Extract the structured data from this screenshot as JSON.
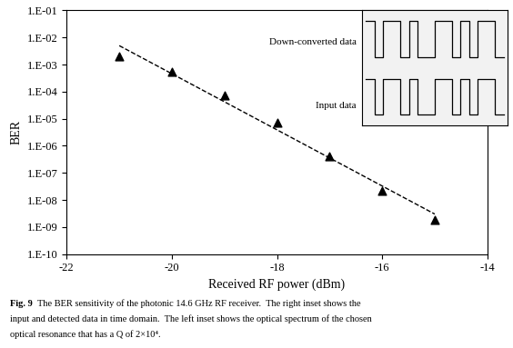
{
  "chart_data": {
    "type": "scatter",
    "x_label": "Received RF power (dBm)",
    "y_label": "BER",
    "log": "y",
    "xlim": [
      -22,
      -14
    ],
    "xticks": [
      -22,
      -20,
      -18,
      -16,
      -14
    ],
    "ylim": [
      1e-10,
      0.1
    ],
    "yticks": [
      {
        "value": 1e-10,
        "label": "1.E-10"
      },
      {
        "value": 1e-09,
        "label": "1.E-09"
      },
      {
        "value": 1e-08,
        "label": "1.E-08"
      },
      {
        "value": 1e-07,
        "label": "1.E-07"
      },
      {
        "value": 1e-06,
        "label": "1.E-06"
      },
      {
        "value": 1e-05,
        "label": "1.E-05"
      },
      {
        "value": 0.0001,
        "label": "1.E-04"
      },
      {
        "value": 0.001,
        "label": "1.E-03"
      },
      {
        "value": 0.01,
        "label": "1.E-02"
      },
      {
        "value": 0.1,
        "label": "1.E-01"
      }
    ],
    "series": [
      {
        "type": "scatter",
        "marker": "triangle",
        "color": "#000000",
        "x": [
          -21,
          -20,
          -19,
          -18,
          -17,
          -16,
          -15
        ],
        "values": [
          0.002,
          0.00055,
          7e-05,
          7e-06,
          4e-07,
          2.2e-08,
          1.8e-09
        ]
      },
      {
        "type": "line",
        "line_style": "dashed",
        "color": "#000000",
        "x": [
          -21,
          -15
        ],
        "values": [
          0.005,
          3e-09
        ]
      }
    ],
    "inset": {
      "traces": [
        {
          "label": "Down-converted data",
          "bits": [
            1,
            0,
            1,
            1,
            0,
            1,
            0,
            0,
            1,
            1,
            0,
            1,
            0,
            1,
            1,
            0
          ]
        },
        {
          "label": "Input data",
          "bits": [
            1,
            0,
            1,
            1,
            0,
            1,
            0,
            0,
            1,
            1,
            0,
            1,
            0,
            1,
            1,
            0
          ]
        }
      ]
    },
    "caption": {
      "label": "Fig. 9",
      "lines": [
        "  The BER sensitivity of the photonic 14.6 GHz RF receiver.  The right inset shows the",
        "input and detected data in time domain.  The left inset shows the optical spectrum of the chosen",
        "optical resonance that has a Q of 2×10⁴."
      ]
    }
  }
}
